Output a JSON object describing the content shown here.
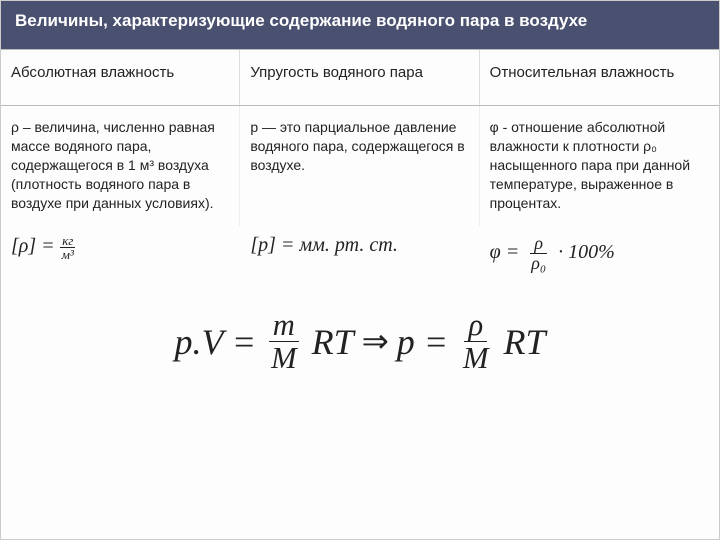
{
  "colors": {
    "title_bg": "#4a5070",
    "title_text": "#ffffff",
    "border": "#bbbbbb",
    "body_text": "#222222"
  },
  "title": "Величины, характеризующие содержание водяного пара в воздухе",
  "columns": [
    {
      "header": "Абсолютная влажность",
      "body": "ρ – величина, численно равная массе водяного пара, содержащегося в 1 м³ воздуха (плотность водяного пара в воздухе при данных условиях).",
      "formula_label": "[ρ] =",
      "formula_unit_num": "кг",
      "formula_unit_den": "м³"
    },
    {
      "header": "Упругость водяного пара",
      "body": "p — это парциальное давление водяного пара, содержащегося в воздухе.",
      "formula_label": "[p] =",
      "formula_unit": "мм. рт. ст."
    },
    {
      "header": "Относительная влажность",
      "body": "φ - отношение абсолютной влажности к плотности ρ₀ насыщенного пара при данной температуре, выраженное в процентах.",
      "formula_lhs": "φ =",
      "formula_num": "ρ",
      "formula_den": "ρ₀",
      "formula_rhs": "· 100%"
    }
  ],
  "main_formula": {
    "lhs1": "p.V =",
    "frac1_num": "m",
    "frac1_den": "M",
    "mid1": "RT",
    "arrow": "⇒",
    "lhs2": "p =",
    "frac2_num": "ρ",
    "frac2_den": "M",
    "mid2": "RT"
  }
}
